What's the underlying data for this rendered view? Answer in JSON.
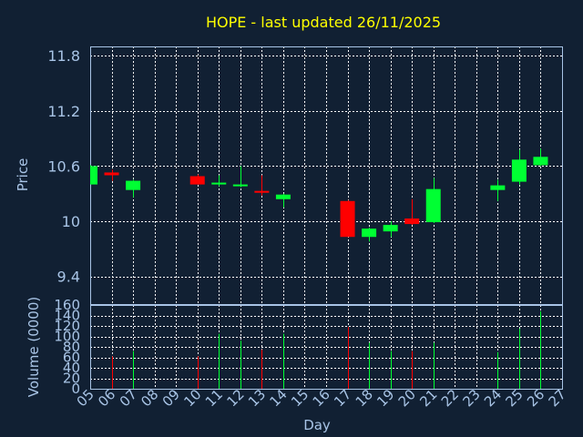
{
  "chart_data": {
    "type": "candlestick",
    "title": "HOPE - last updated 26/11/2025",
    "colors": {
      "background": "#112033",
      "plot_border": "#a8c4e6",
      "grid": "#ffffff",
      "text": "#a8c4e6",
      "title": "#ffff00",
      "up": "#00ff33",
      "down": "#ff0000"
    },
    "price_panel": {
      "ylabel": "Price",
      "ylim": [
        9.1,
        11.9
      ],
      "yticks": [
        "11.8",
        "11.2",
        "10.6",
        "10",
        "9.4"
      ],
      "ytick_values": [
        11.8,
        11.2,
        10.6,
        10.0,
        9.4
      ],
      "grid": true
    },
    "volume_panel": {
      "ylabel": "Volume (0000)",
      "ylim": [
        0,
        160
      ],
      "yticks": [
        "160",
        "140",
        "120",
        "100",
        "80",
        "60",
        "40",
        "20",
        "0"
      ],
      "ytick_values": [
        160,
        140,
        120,
        100,
        80,
        60,
        40,
        20,
        0
      ],
      "grid": true
    },
    "xlabel": "Day",
    "x_categories": [
      "05",
      "06",
      "07",
      "08",
      "09",
      "10",
      "11",
      "12",
      "13",
      "14",
      "15",
      "16",
      "17",
      "18",
      "19",
      "20",
      "21",
      "22",
      "23",
      "24",
      "25",
      "26",
      "27"
    ],
    "candles": [
      {
        "day": "05",
        "open": 10.4,
        "high": 10.61,
        "low": 10.4,
        "close": 10.6,
        "volume": 0
      },
      {
        "day": "06",
        "open": 10.53,
        "high": 10.56,
        "low": 10.44,
        "close": 10.5,
        "volume": 62
      },
      {
        "day": "07",
        "open": 10.34,
        "high": 10.45,
        "low": 10.26,
        "close": 10.44,
        "volume": 72
      },
      {
        "day": "10",
        "open": 10.49,
        "high": 10.51,
        "low": 10.4,
        "close": 10.4,
        "volume": 62
      },
      {
        "day": "11",
        "open": 10.4,
        "high": 10.5,
        "low": 10.38,
        "close": 10.42,
        "volume": 105
      },
      {
        "day": "12",
        "open": 10.38,
        "high": 10.6,
        "low": 10.37,
        "close": 10.4,
        "volume": 92
      },
      {
        "day": "13",
        "open": 10.33,
        "high": 10.5,
        "low": 10.28,
        "close": 10.31,
        "volume": 75
      },
      {
        "day": "14",
        "open": 10.24,
        "high": 10.3,
        "low": 10.15,
        "close": 10.29,
        "volume": 105
      },
      {
        "day": "15",
        "open": null,
        "high": null,
        "low": null,
        "close": null,
        "volume": 0
      },
      {
        "day": "16",
        "open": null,
        "high": null,
        "low": null,
        "close": null,
        "volume": 0
      },
      {
        "day": "17",
        "open": 10.22,
        "high": 10.23,
        "low": 9.83,
        "close": 9.83,
        "volume": 118
      },
      {
        "day": "18",
        "open": 9.83,
        "high": 9.93,
        "low": 9.78,
        "close": 9.92,
        "volume": 88
      },
      {
        "day": "19",
        "open": 9.89,
        "high": 10.0,
        "low": 9.83,
        "close": 9.96,
        "volume": 72
      },
      {
        "day": "20",
        "open": 10.03,
        "high": 10.24,
        "low": 9.96,
        "close": 9.97,
        "volume": 72
      },
      {
        "day": "21",
        "open": 9.99,
        "high": 10.47,
        "low": 9.98,
        "close": 10.35,
        "volume": 88
      },
      {
        "day": "24",
        "open": 10.34,
        "high": 10.45,
        "low": 10.22,
        "close": 10.39,
        "volume": 70
      },
      {
        "day": "25",
        "open": 10.43,
        "high": 10.78,
        "low": 10.4,
        "close": 10.67,
        "volume": 115
      },
      {
        "day": "26",
        "open": 10.61,
        "high": 10.79,
        "low": 10.6,
        "close": 10.7,
        "volume": 148
      }
    ]
  }
}
